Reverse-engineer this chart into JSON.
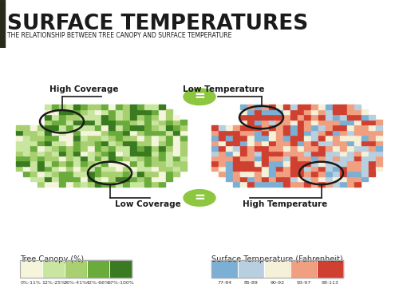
{
  "title": "SURFACE TEMPERATURES",
  "subtitle": "THE RELATIONSHIP BETWEEN TREE CANOPY AND SURFACE TEMPERATURE",
  "title_bg": "#8dc63f",
  "title_dark_bar": "#2a2a1a",
  "title_color": "#1a1a1a",
  "subtitle_color": "#1a1a1a",
  "body_bg": "#ffffff",
  "high_coverage_label": "High Coverage",
  "low_coverage_label": "Low Coverage",
  "low_temp_label": "Low Temperature",
  "high_temp_label": "High Temperature",
  "canopy_legend_title": "Tree Canopy (%)",
  "canopy_colors": [
    "#f5f5dc",
    "#c8e6a0",
    "#a8d070",
    "#6aab3c",
    "#3a7a20"
  ],
  "canopy_labels": [
    "0%-11%",
    "12%-25%",
    "26%-41%",
    "42%-66%",
    "67%-100%"
  ],
  "temp_legend_title": "Surface Temperature (Fahrenheit)",
  "temp_colors": [
    "#7bafd4",
    "#b8cfe0",
    "#f5f0d8",
    "#f0a080",
    "#d04030"
  ],
  "temp_labels": [
    "77-84",
    "85-89",
    "90-92",
    "93-97",
    "98-113"
  ],
  "equal_sign_color": "#8dc63f",
  "circle_color": "#1a1a1a",
  "label_color": "#1a1a1a",
  "line_color": "#1a1a1a",
  "green_weights": [
    0.12,
    0.22,
    0.28,
    0.22,
    0.16
  ],
  "temp_weights": [
    0.12,
    0.15,
    0.13,
    0.3,
    0.3
  ]
}
